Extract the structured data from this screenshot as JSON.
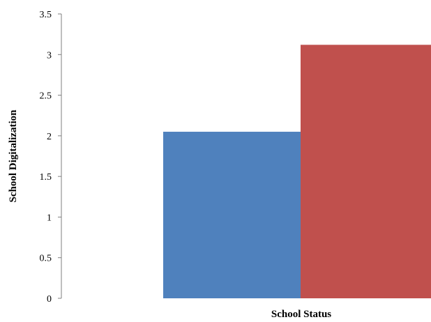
{
  "chart_data": {
    "type": "bar",
    "title": "",
    "xlabel": "School Status",
    "ylabel": "School Digitalization",
    "ylim": [
      0,
      3.5
    ],
    "yticks": [
      "0",
      "0.5",
      "1",
      "1.5",
      "2",
      "2.5",
      "3",
      "3.5"
    ],
    "grid": false,
    "legend": "none",
    "categories": [
      ""
    ],
    "series": [
      {
        "values": [
          2.05
        ],
        "color": "#4F81BD"
      },
      {
        "values": [
          3.12
        ],
        "color": "#C0504D"
      }
    ]
  }
}
